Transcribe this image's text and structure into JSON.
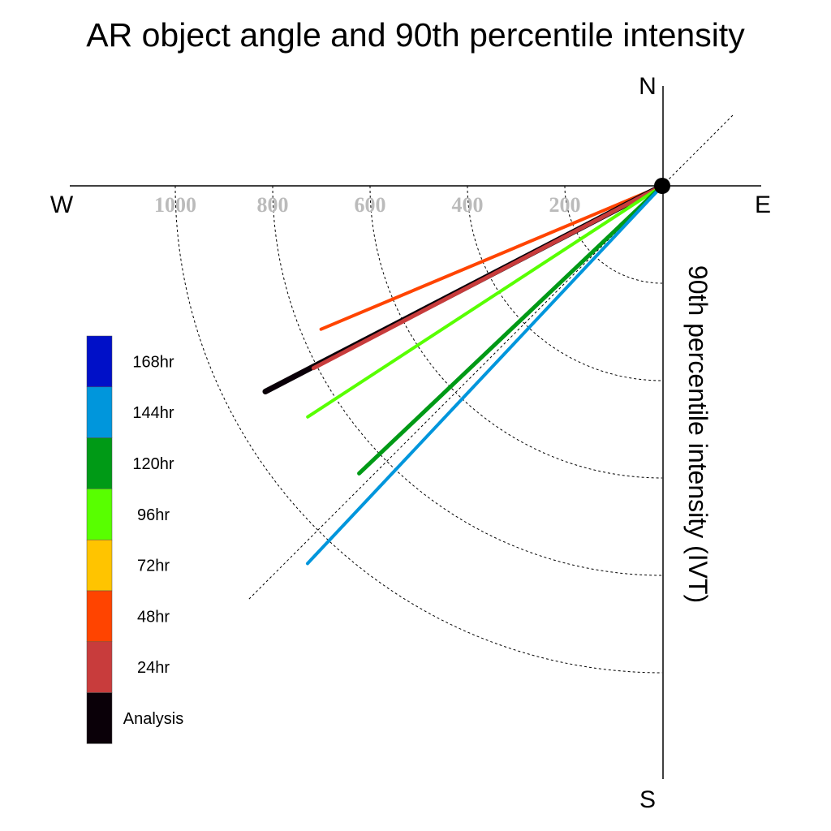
{
  "chart_data": {
    "type": "polar-line",
    "title": "AR object angle and 90th percentile intensity",
    "ylabel": "90th percentile intensity (IVT)",
    "compass": {
      "n": "N",
      "e": "E",
      "s": "S",
      "w": "W"
    },
    "radial_range": [
      0,
      1200
    ],
    "radial_ticks": [
      200,
      400,
      600,
      800,
      1000
    ],
    "radial_tick_labels": [
      "200",
      "400",
      "600",
      "800",
      "1000"
    ],
    "grid": true,
    "legend_position": "left",
    "legend": [
      {
        "label": "168hr",
        "color": "#0010c8"
      },
      {
        "label": "144hr",
        "color": "#0096dc"
      },
      {
        "label": "120hr",
        "color": "#009a16"
      },
      {
        "label": "96hr",
        "color": "#58ff00"
      },
      {
        "label": "72hr",
        "color": "#ffc400"
      },
      {
        "label": "48hr",
        "color": "#ff4400"
      },
      {
        "label": "24hr",
        "color": "#c83c3c"
      },
      {
        "label": "Analysis",
        "color": "#0a0008"
      }
    ],
    "series": [
      {
        "name": "48hr",
        "color": "#ff4400",
        "angle_deg": 247.2,
        "intensity": 760,
        "width": 4
      },
      {
        "name": "Analysis",
        "color": "#0a0008",
        "angle_deg": 242.6,
        "intensity": 918,
        "width": 7
      },
      {
        "name": "24hr",
        "color": "#c83c3c",
        "angle_deg": 242.4,
        "intensity": 808,
        "width": 5
      },
      {
        "name": "96hr",
        "color": "#58ff00",
        "angle_deg": 236.9,
        "intensity": 869,
        "width": 4
      },
      {
        "name": "120hr",
        "color": "#009a16",
        "angle_deg": 226.5,
        "intensity": 858,
        "width": 5
      },
      {
        "name": "144hr",
        "color": "#0096dc",
        "angle_deg": 223.2,
        "intensity": 1064,
        "width": 4
      }
    ]
  }
}
